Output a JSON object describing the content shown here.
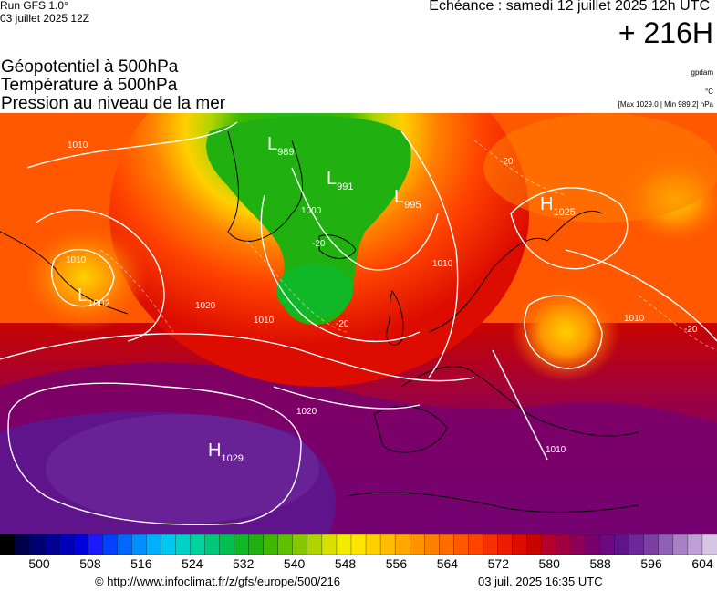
{
  "header": {
    "run": "Run GFS 1.0°",
    "run_date": "03 juillet 2025 12Z",
    "echeance": "Echéance : samedi 12 juillet 2025 12h UTC",
    "horizon": "+ 216H"
  },
  "layers": [
    "Géopotentiel à 500hPa",
    "Température à 500hPa",
    "Pression au niveau de la mer"
  ],
  "units": {
    "geopotential": "gpdam",
    "temperature": "°C",
    "pressure_range": "[Max 1029.0 | Min 989.2] hPa"
  },
  "map": {
    "pressure_centers": [
      {
        "type": "L",
        "value": "989"
      },
      {
        "type": "L",
        "value": "991"
      },
      {
        "type": "L",
        "value": "995"
      },
      {
        "type": "L",
        "value": "1002"
      },
      {
        "type": "H",
        "value": "1029"
      },
      {
        "type": "H",
        "value": "1025"
      }
    ],
    "isobar_labels": [
      "1010",
      "1000",
      "1010",
      "1020",
      "1010",
      "1020",
      "1010",
      "1010",
      "1010"
    ],
    "isotherm_labels": [
      "-20",
      "-20",
      "-20",
      "-20"
    ]
  },
  "colorbar": {
    "ticks": [
      "500",
      "508",
      "516",
      "524",
      "532",
      "540",
      "548",
      "556",
      "564",
      "572",
      "580",
      "588",
      "596",
      "604"
    ],
    "colors": [
      "#000000",
      "#00004a",
      "#000070",
      "#000095",
      "#0000b7",
      "#0000dc",
      "#1a1aff",
      "#0040ff",
      "#0068ff",
      "#0090ff",
      "#00b0ff",
      "#00c8f0",
      "#00d2c8",
      "#00d2a0",
      "#00c878",
      "#00c050",
      "#10b828",
      "#20b010",
      "#40b800",
      "#60c000",
      "#88c800",
      "#b0d400",
      "#d8e000",
      "#f4ec00",
      "#ffe400",
      "#ffd000",
      "#ffbc00",
      "#ffa800",
      "#ff9400",
      "#ff8000",
      "#ff6c00",
      "#ff5800",
      "#ff4400",
      "#f83000",
      "#ec1c00",
      "#dc0c00",
      "#c80400",
      "#b4002c",
      "#a00040",
      "#8c0058",
      "#78006c",
      "#6c0880",
      "#60148c",
      "#6c2898",
      "#7c40a4",
      "#9060b4",
      "#a880c4",
      "#c0a0d4",
      "#d8c4e4"
    ]
  },
  "footer": {
    "copyright": "© http://www.infoclimat.fr/z/gfs/europe/500/216",
    "generated": "03 juil. 2025 16:35 UTC"
  }
}
